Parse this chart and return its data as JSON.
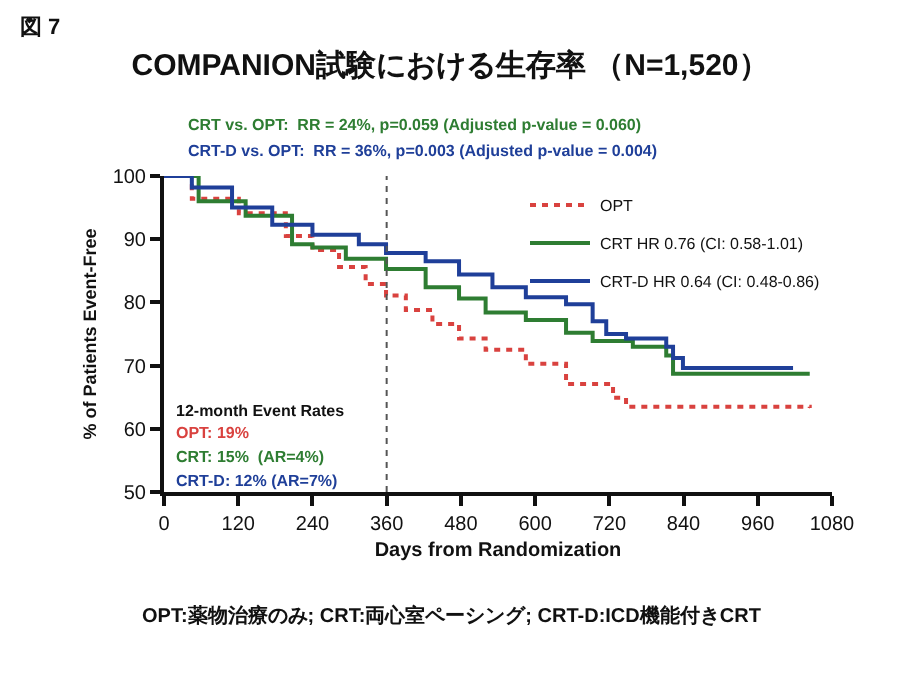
{
  "chart_data": {
    "type": "step",
    "title": "COMPANION試験における生存率 （N=1,520）",
    "xlabel": "Days from Randomization",
    "ylabel": "% of Patients Event-Free",
    "xlim": [
      0,
      1080
    ],
    "xticks": [
      0,
      120,
      240,
      360,
      480,
      600,
      720,
      840,
      960,
      1080
    ],
    "ylim": [
      50,
      100
    ],
    "yticks": [
      50,
      60,
      70,
      80,
      90,
      100
    ],
    "legend": "top right",
    "ref_lines": [
      {
        "axis": "x",
        "value": 360,
        "color": "#555555",
        "line_style": "dotted"
      }
    ],
    "series": [
      {
        "name": "OPT",
        "color": "#d9423f",
        "line_style": "dotted",
        "x": [
          0,
          8,
          45,
          121,
          197,
          240,
          283,
          326,
          359,
          391,
          434,
          477,
          520,
          585,
          650,
          726,
          747,
          1044
        ],
        "values": [
          100,
          100,
          96.4,
          94.1,
          90.5,
          88.3,
          85.6,
          82.9,
          81.1,
          78.8,
          76.6,
          74.3,
          72.5,
          70.3,
          67.1,
          64.9,
          63.5,
          63.3
        ]
      },
      {
        "name": "CRT HR 0.76 (CI: 0.58-1.01)",
        "color": "#2e7d32",
        "line_style": "solid",
        "x": [
          0,
          2,
          56,
          132,
          207,
          240,
          294,
          359,
          423,
          477,
          520,
          585,
          650,
          693,
          758,
          812,
          823,
          1044
        ],
        "values": [
          100,
          100,
          96,
          93.7,
          89.2,
          88.7,
          86.9,
          85.3,
          82.4,
          80.6,
          78.4,
          77.2,
          75.2,
          73.9,
          73,
          71.6,
          68.7,
          68.7
        ]
      },
      {
        "name": "CRT-D HR 0.64 (CI: 0.48-0.86)",
        "color": "#1f3f99",
        "line_style": "solid",
        "x": [
          0,
          2,
          45,
          110,
          175,
          240,
          315,
          359,
          423,
          477,
          531,
          585,
          650,
          693,
          715,
          747,
          812,
          823,
          839,
          1017
        ],
        "values": [
          100,
          100,
          98.2,
          95,
          92.3,
          90.7,
          89.2,
          87.8,
          86.5,
          84.4,
          82.4,
          80.8,
          79.7,
          77,
          75,
          74.3,
          73,
          71.2,
          69.6,
          69.6
        ]
      }
    ],
    "annotations": [
      "図 7",
      "CRT vs. OPT:  RR = 24%, p=0.059 (Adjusted p-value = 0.060)",
      "CRT-D vs. OPT:  RR = 36%, p=0.003 (Adjusted p-value = 0.004)",
      "12-month Event Rates",
      "OPT: 19%",
      "CRT: 15%  (AR=4%)",
      "CRT-D: 12% (AR=7%)",
      "OPT:薬物治療のみ; CRT:両心室ペーシング; CRT-D:ICD機能付きCRT"
    ]
  }
}
